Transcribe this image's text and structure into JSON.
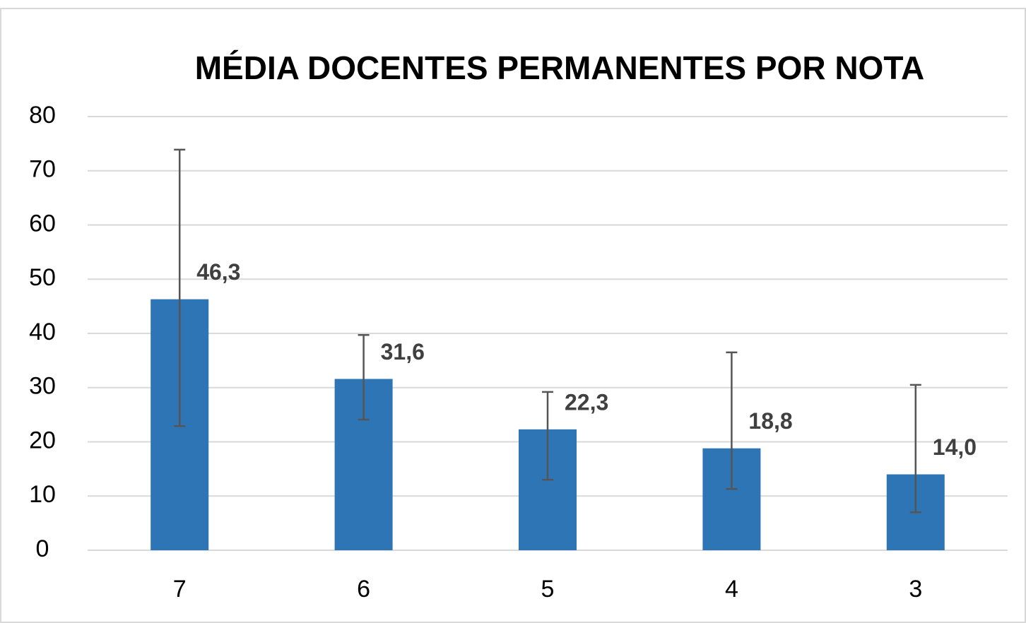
{
  "chart_data": {
    "type": "bar",
    "title": "MÉDIA DOCENTES PERMANENTES POR NOTA",
    "categories": [
      "7",
      "6",
      "5",
      "4",
      "3"
    ],
    "values": [
      46.3,
      31.6,
      22.3,
      18.8,
      14.0
    ],
    "value_labels": [
      "46,3",
      "31,6",
      "22,3",
      "18,8",
      "14,0"
    ],
    "error_low": [
      23.4,
      7.5,
      9.3,
      7.5,
      7.0
    ],
    "error_high": [
      27.6,
      8.1,
      6.9,
      17.7,
      16.5
    ],
    "color": "#2e75b6",
    "ylim": [
      0,
      80
    ],
    "yticks": [
      0,
      10,
      20,
      30,
      40,
      50,
      60,
      70,
      80
    ],
    "grid": true
  }
}
